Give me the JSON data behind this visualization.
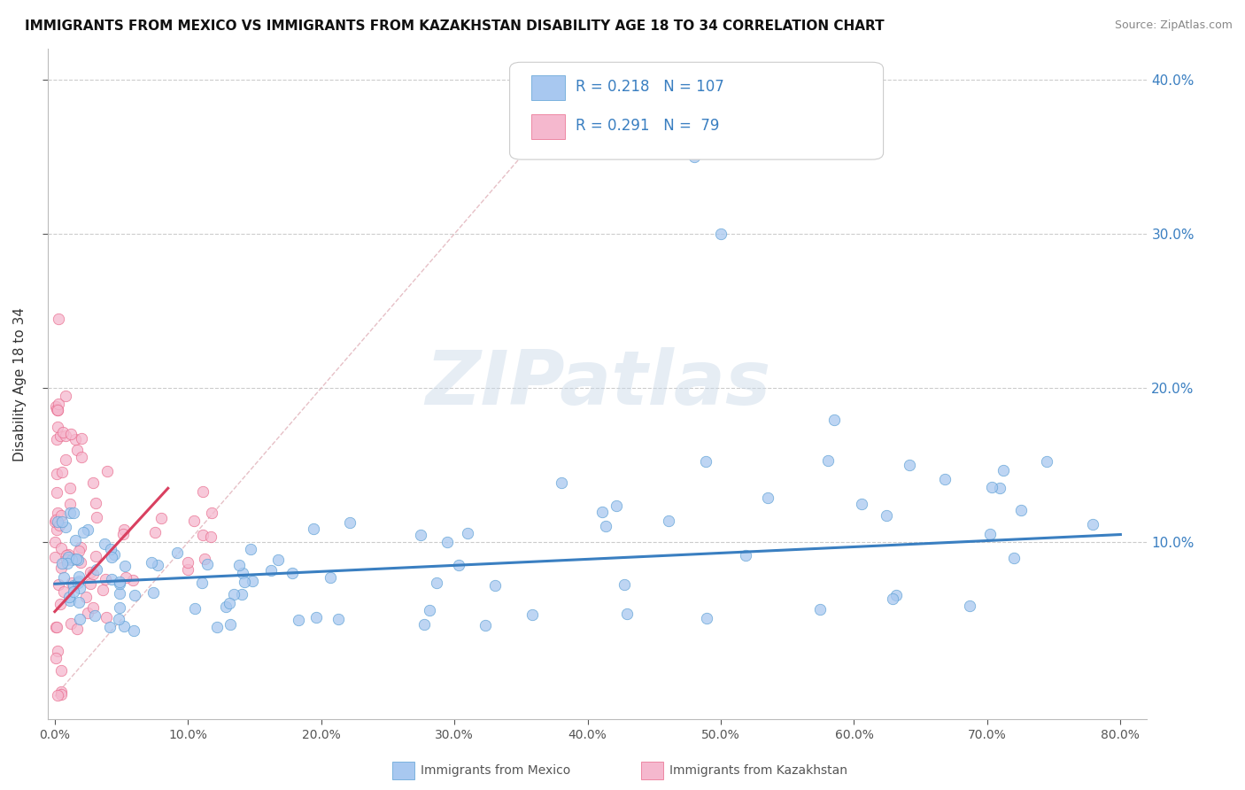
{
  "title": "IMMIGRANTS FROM MEXICO VS IMMIGRANTS FROM KAZAKHSTAN DISABILITY AGE 18 TO 34 CORRELATION CHART",
  "source": "Source: ZipAtlas.com",
  "ylabel": "Disability Age 18 to 34",
  "watermark": "ZIPatlas",
  "legend_mexico": "Immigrants from Mexico",
  "legend_kazakhstan": "Immigrants from Kazakhstan",
  "R_mexico": 0.218,
  "N_mexico": 107,
  "R_kazakhstan": 0.291,
  "N_kazakhstan": 79,
  "xlim": [
    -0.005,
    0.82
  ],
  "ylim": [
    -0.015,
    0.42
  ],
  "xticks": [
    0.0,
    0.1,
    0.2,
    0.3,
    0.4,
    0.5,
    0.6,
    0.7,
    0.8
  ],
  "yticks_right": [
    0.1,
    0.2,
    0.3,
    0.4
  ],
  "color_mexico": "#a8c8f0",
  "color_kazakhstan": "#f5b8ce",
  "edge_mexico": "#5a9fd4",
  "edge_kazakhstan": "#e8688a",
  "trendline_mexico": "#3a7fc1",
  "trendline_kazakhstan": "#d94060",
  "diag_color": "#e0b0b8",
  "mexico_trend_x": [
    0.0,
    0.8
  ],
  "mexico_trend_y": [
    0.073,
    0.105
  ],
  "kazakhstan_trend_x": [
    0.0,
    0.085
  ],
  "kazakhstan_trend_y": [
    0.055,
    0.135
  ]
}
